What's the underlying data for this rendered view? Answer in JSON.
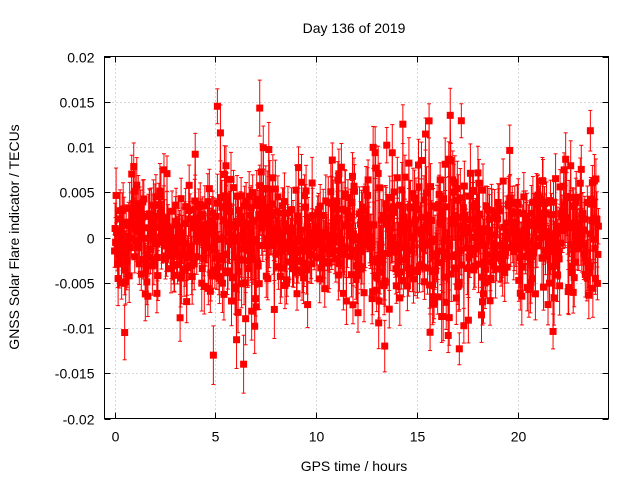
{
  "chart_data": {
    "type": "scatter",
    "title": "Day 136 of 2019",
    "xlabel": "GPS time / hours",
    "ylabel": "GNSS Solar Flare indicator / TECUs",
    "xlim": [
      -0.5,
      24.5
    ],
    "ylim": [
      -0.02,
      0.02
    ],
    "x_ticks": [
      0,
      5,
      10,
      15,
      20
    ],
    "x_tick_labels": [
      "0",
      "5",
      "10",
      "15",
      "20"
    ],
    "y_ticks": [
      -0.02,
      -0.015,
      -0.01,
      -0.005,
      0,
      0.005,
      0.01,
      0.015,
      0.02
    ],
    "y_tick_labels": [
      "-0.02",
      "-0.015",
      "-0.01",
      "-0.005",
      "0",
      "0.005",
      "0.01",
      "0.015",
      "0.02"
    ],
    "grid": true,
    "series": [
      {
        "name": "solar-flare-indicator",
        "color": "#ff0000",
        "marker": "square",
        "error_bars": true,
        "time_range_hours": [
          0,
          24
        ],
        "sample_interval_hours": 0.025,
        "noise_envelope": [
          {
            "x": 0,
            "sigma": 0.0042
          },
          {
            "x": 2,
            "sigma": 0.004
          },
          {
            "x": 4,
            "sigma": 0.0042
          },
          {
            "x": 5,
            "sigma": 0.0055
          },
          {
            "x": 6.5,
            "sigma": 0.0062
          },
          {
            "x": 8,
            "sigma": 0.005
          },
          {
            "x": 10,
            "sigma": 0.0042
          },
          {
            "x": 12,
            "sigma": 0.0045
          },
          {
            "x": 13.5,
            "sigma": 0.0058
          },
          {
            "x": 15,
            "sigma": 0.0058
          },
          {
            "x": 17,
            "sigma": 0.0056
          },
          {
            "x": 18.5,
            "sigma": 0.0045
          },
          {
            "x": 20,
            "sigma": 0.0038
          },
          {
            "x": 22,
            "sigma": 0.0042
          },
          {
            "x": 24,
            "sigma": 0.0048
          }
        ],
        "error_bar_half_width": 0.0025,
        "notable_points": [
          {
            "x": 5.1,
            "y": 0.0145
          },
          {
            "x": 7.2,
            "y": 0.0143
          },
          {
            "x": 17.2,
            "y": 0.0129
          },
          {
            "x": 13.5,
            "y": 0.0102
          },
          {
            "x": 6.4,
            "y": -0.014
          },
          {
            "x": 4.9,
            "y": -0.013
          },
          {
            "x": 17.1,
            "y": -0.0123
          },
          {
            "x": 13.4,
            "y": -0.012
          },
          {
            "x": 0.5,
            "y": -0.0105
          },
          {
            "x": 23.6,
            "y": 0.0118
          }
        ]
      }
    ]
  }
}
